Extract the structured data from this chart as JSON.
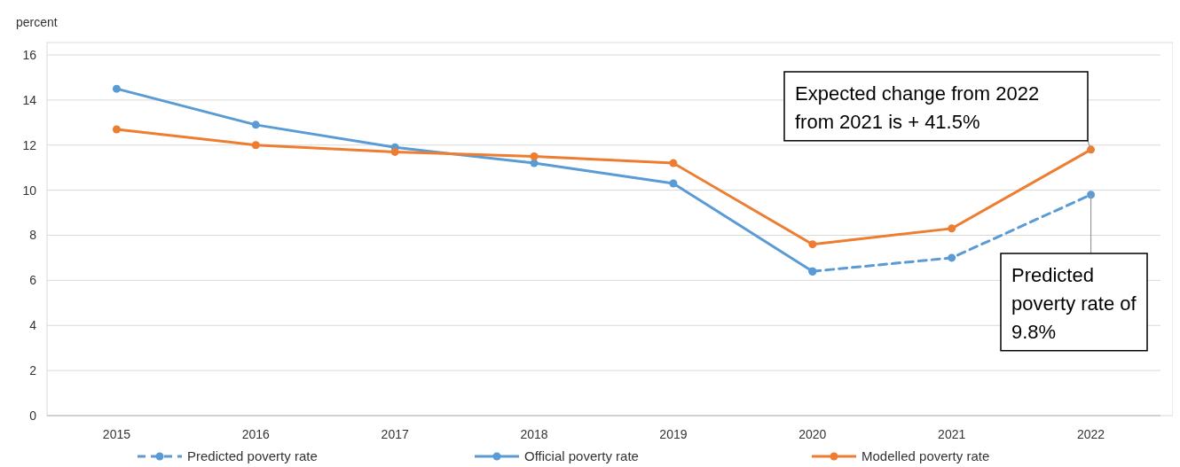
{
  "chart_data": {
    "type": "line",
    "ylabel": "percent",
    "categories": [
      "2015",
      "2016",
      "2017",
      "2018",
      "2019",
      "2020",
      "2021",
      "2022"
    ],
    "series": [
      {
        "name": "Predicted poverty rate",
        "color": "#5b9bd5",
        "line_style": "dashed",
        "values": [
          null,
          null,
          null,
          null,
          null,
          6.4,
          7.0,
          9.8
        ]
      },
      {
        "name": "Official poverty rate",
        "color": "#5b9bd5",
        "line_style": "solid",
        "values": [
          14.5,
          12.9,
          11.9,
          11.2,
          10.3,
          6.4,
          null,
          null
        ]
      },
      {
        "name": "Modelled poverty rate",
        "color": "#ed7d31",
        "line_style": "solid",
        "values": [
          12.7,
          12.0,
          11.7,
          11.5,
          11.2,
          7.6,
          8.3,
          11.8
        ]
      }
    ],
    "ylim": [
      0,
      16
    ],
    "yticks": [
      0,
      2,
      4,
      6,
      8,
      10,
      12,
      14,
      16
    ],
    "grid": "y",
    "legend": "bottom",
    "marker": "circle",
    "annotations": [
      {
        "text": "Expected change from 2022 from 2021 is + 41.5%",
        "x": "2022",
        "y": 11.8
      },
      {
        "text": "Predicted poverty rate of 9.8%",
        "x": "2022",
        "y": 9.8
      }
    ]
  }
}
